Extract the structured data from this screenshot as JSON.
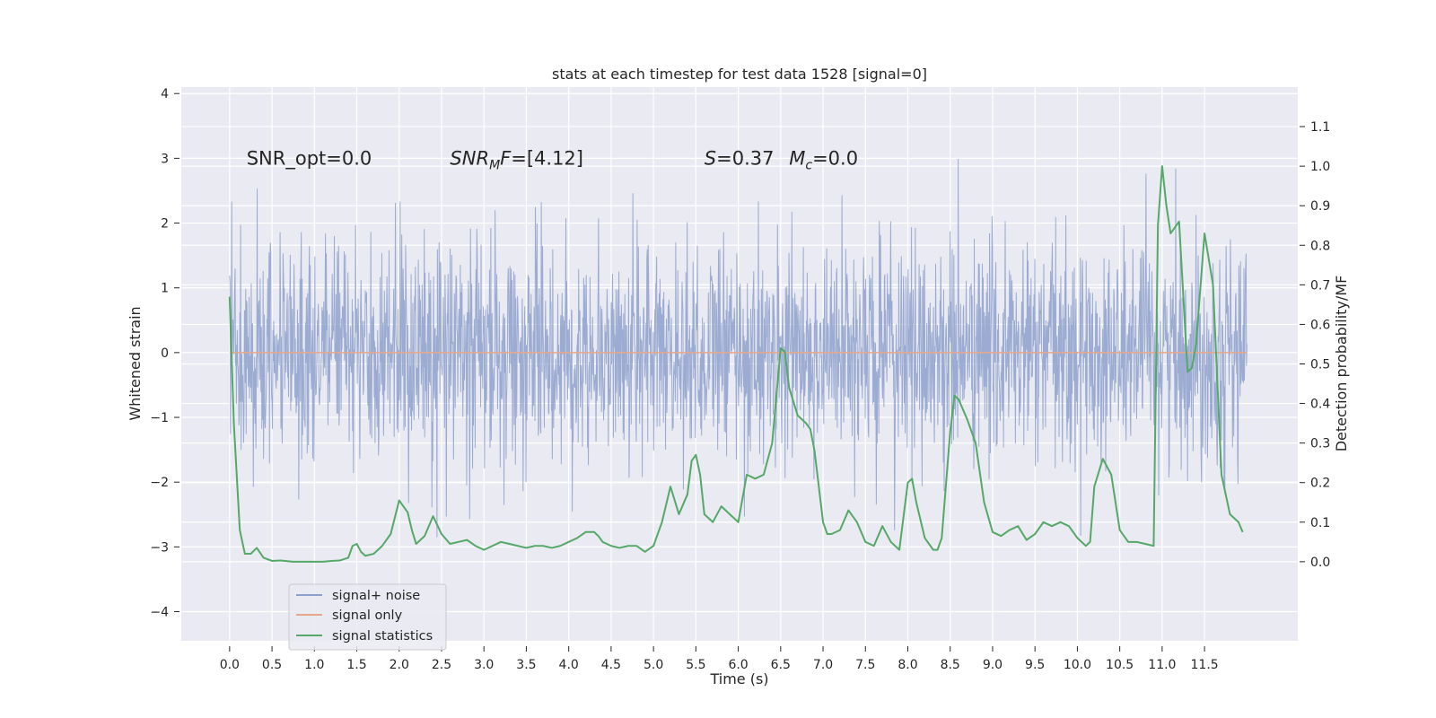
{
  "chart_data": {
    "type": "line",
    "title": "stats at each timestep for test data 1528 [signal=0]",
    "xlabel": "Time (s)",
    "ylabel": "Whitened strain",
    "y2label": "Detection probability/MF",
    "xlim": [
      -0.57,
      12.6
    ],
    "ylim": [
      -4.45,
      4.1
    ],
    "y2lim": [
      -0.2,
      1.2
    ],
    "x_ticks": [
      0.0,
      0.5,
      1.0,
      1.5,
      2.0,
      2.5,
      3.0,
      3.5,
      4.0,
      4.5,
      5.0,
      5.5,
      6.0,
      6.5,
      7.0,
      7.5,
      8.0,
      8.5,
      9.0,
      9.5,
      10.0,
      10.5,
      11.0,
      11.5
    ],
    "x_tick_labels": [
      "0.0",
      "0.5",
      "1.0",
      "1.5",
      "2.0",
      "2.5",
      "3.0",
      "3.5",
      "4.0",
      "4.5",
      "5.0",
      "5.5",
      "6.0",
      "6.5",
      "7.0",
      "7.5",
      "8.0",
      "8.5",
      "9.0",
      "9.5",
      "10.0",
      "10.5",
      "11.0",
      "11.5"
    ],
    "y_ticks": [
      -4,
      -3,
      -2,
      -1,
      0,
      1,
      2,
      3,
      4
    ],
    "y_tick_labels": [
      "−4",
      "−3",
      "−2",
      "−1",
      "0",
      "1",
      "2",
      "3",
      "4"
    ],
    "y2_ticks": [
      0.0,
      0.1,
      0.2,
      0.3,
      0.4,
      0.5,
      0.6,
      0.7,
      0.8,
      0.9,
      1.0,
      1.1
    ],
    "y2_tick_labels": [
      "0.0",
      "0.1",
      "0.2",
      "0.3",
      "0.4",
      "0.5",
      "0.6",
      "0.7",
      "0.8",
      "0.9",
      "1.0",
      "1.1"
    ],
    "grid": true,
    "legend_position": "lower-left",
    "noise_trace": {
      "t_range": [
        0.0,
        12.0
      ],
      "std": 0.85,
      "peak_max": 3.7,
      "peak_min": -3.5
    },
    "series": [
      {
        "name": "signal+ noise",
        "color": "#8da0cb",
        "axis": "left",
        "style": "dense noise trace"
      },
      {
        "name": "signal only",
        "color": "#e8a78a",
        "axis": "left",
        "x": [
          0.0,
          12.0
        ],
        "y": [
          0.0,
          0.0
        ]
      },
      {
        "name": "signal statistics",
        "color": "#55a868",
        "axis": "right",
        "x": [
          0.0,
          0.05,
          0.12,
          0.18,
          0.25,
          0.32,
          0.4,
          0.5,
          0.6,
          0.75,
          0.9,
          1.0,
          1.1,
          1.2,
          1.3,
          1.4,
          1.45,
          1.5,
          1.55,
          1.6,
          1.7,
          1.8,
          1.9,
          2.0,
          2.1,
          2.15,
          2.2,
          2.3,
          2.4,
          2.5,
          2.6,
          2.7,
          2.8,
          2.9,
          3.0,
          3.1,
          3.2,
          3.3,
          3.4,
          3.5,
          3.6,
          3.7,
          3.8,
          3.9,
          4.0,
          4.1,
          4.2,
          4.3,
          4.35,
          4.4,
          4.5,
          4.6,
          4.7,
          4.8,
          4.9,
          5.0,
          5.1,
          5.2,
          5.3,
          5.4,
          5.45,
          5.5,
          5.55,
          5.6,
          5.7,
          5.8,
          5.9,
          6.0,
          6.1,
          6.2,
          6.3,
          6.4,
          6.5,
          6.55,
          6.6,
          6.7,
          6.8,
          6.85,
          6.9,
          7.0,
          7.05,
          7.1,
          7.2,
          7.3,
          7.4,
          7.5,
          7.6,
          7.7,
          7.8,
          7.9,
          8.0,
          8.05,
          8.1,
          8.2,
          8.3,
          8.35,
          8.4,
          8.5,
          8.55,
          8.6,
          8.7,
          8.8,
          8.9,
          9.0,
          9.1,
          9.2,
          9.3,
          9.4,
          9.5,
          9.6,
          9.7,
          9.8,
          9.9,
          10.0,
          10.1,
          10.15,
          10.2,
          10.3,
          10.4,
          10.5,
          10.6,
          10.7,
          10.8,
          10.9,
          10.95,
          11.0,
          11.05,
          11.1,
          11.2,
          11.3,
          11.35,
          11.4,
          11.5,
          11.6,
          11.7,
          11.8,
          11.9,
          11.95
        ],
        "y": [
          0.67,
          0.35,
          0.08,
          0.02,
          0.02,
          0.035,
          0.01,
          0.002,
          0.003,
          0.0,
          0.0,
          0.0,
          0.0,
          0.002,
          0.003,
          0.01,
          0.04,
          0.045,
          0.025,
          0.015,
          0.02,
          0.04,
          0.07,
          0.155,
          0.125,
          0.08,
          0.045,
          0.065,
          0.115,
          0.07,
          0.045,
          0.05,
          0.055,
          0.04,
          0.03,
          0.04,
          0.05,
          0.045,
          0.04,
          0.035,
          0.04,
          0.04,
          0.035,
          0.04,
          0.05,
          0.06,
          0.075,
          0.075,
          0.065,
          0.05,
          0.04,
          0.035,
          0.04,
          0.04,
          0.025,
          0.04,
          0.1,
          0.19,
          0.12,
          0.17,
          0.255,
          0.27,
          0.22,
          0.12,
          0.1,
          0.14,
          0.12,
          0.1,
          0.22,
          0.21,
          0.22,
          0.3,
          0.54,
          0.53,
          0.44,
          0.37,
          0.35,
          0.335,
          0.28,
          0.1,
          0.07,
          0.07,
          0.08,
          0.13,
          0.1,
          0.05,
          0.04,
          0.09,
          0.05,
          0.03,
          0.2,
          0.21,
          0.15,
          0.06,
          0.03,
          0.03,
          0.06,
          0.33,
          0.42,
          0.41,
          0.36,
          0.3,
          0.15,
          0.075,
          0.065,
          0.08,
          0.09,
          0.055,
          0.07,
          0.1,
          0.09,
          0.1,
          0.09,
          0.06,
          0.04,
          0.05,
          0.19,
          0.26,
          0.22,
          0.08,
          0.05,
          0.05,
          0.045,
          0.04,
          0.85,
          1.0,
          0.9,
          0.83,
          0.86,
          0.48,
          0.49,
          0.55,
          0.83,
          0.7,
          0.22,
          0.12,
          0.1,
          0.075
        ]
      }
    ],
    "annotations": [
      {
        "x": 0.2,
        "y": 3.0,
        "text": "SNR_opt=0.0"
      },
      {
        "x": 2.6,
        "y": 3.0,
        "base": "SNR",
        "sub": "M",
        "rest": "F=[4.12]"
      },
      {
        "x": 5.6,
        "y": 3.0,
        "base": "S",
        "rest": "=0.37"
      },
      {
        "x": 6.6,
        "y": 3.0,
        "base": "M",
        "sub": "c",
        "rest": "=0.0"
      }
    ]
  }
}
